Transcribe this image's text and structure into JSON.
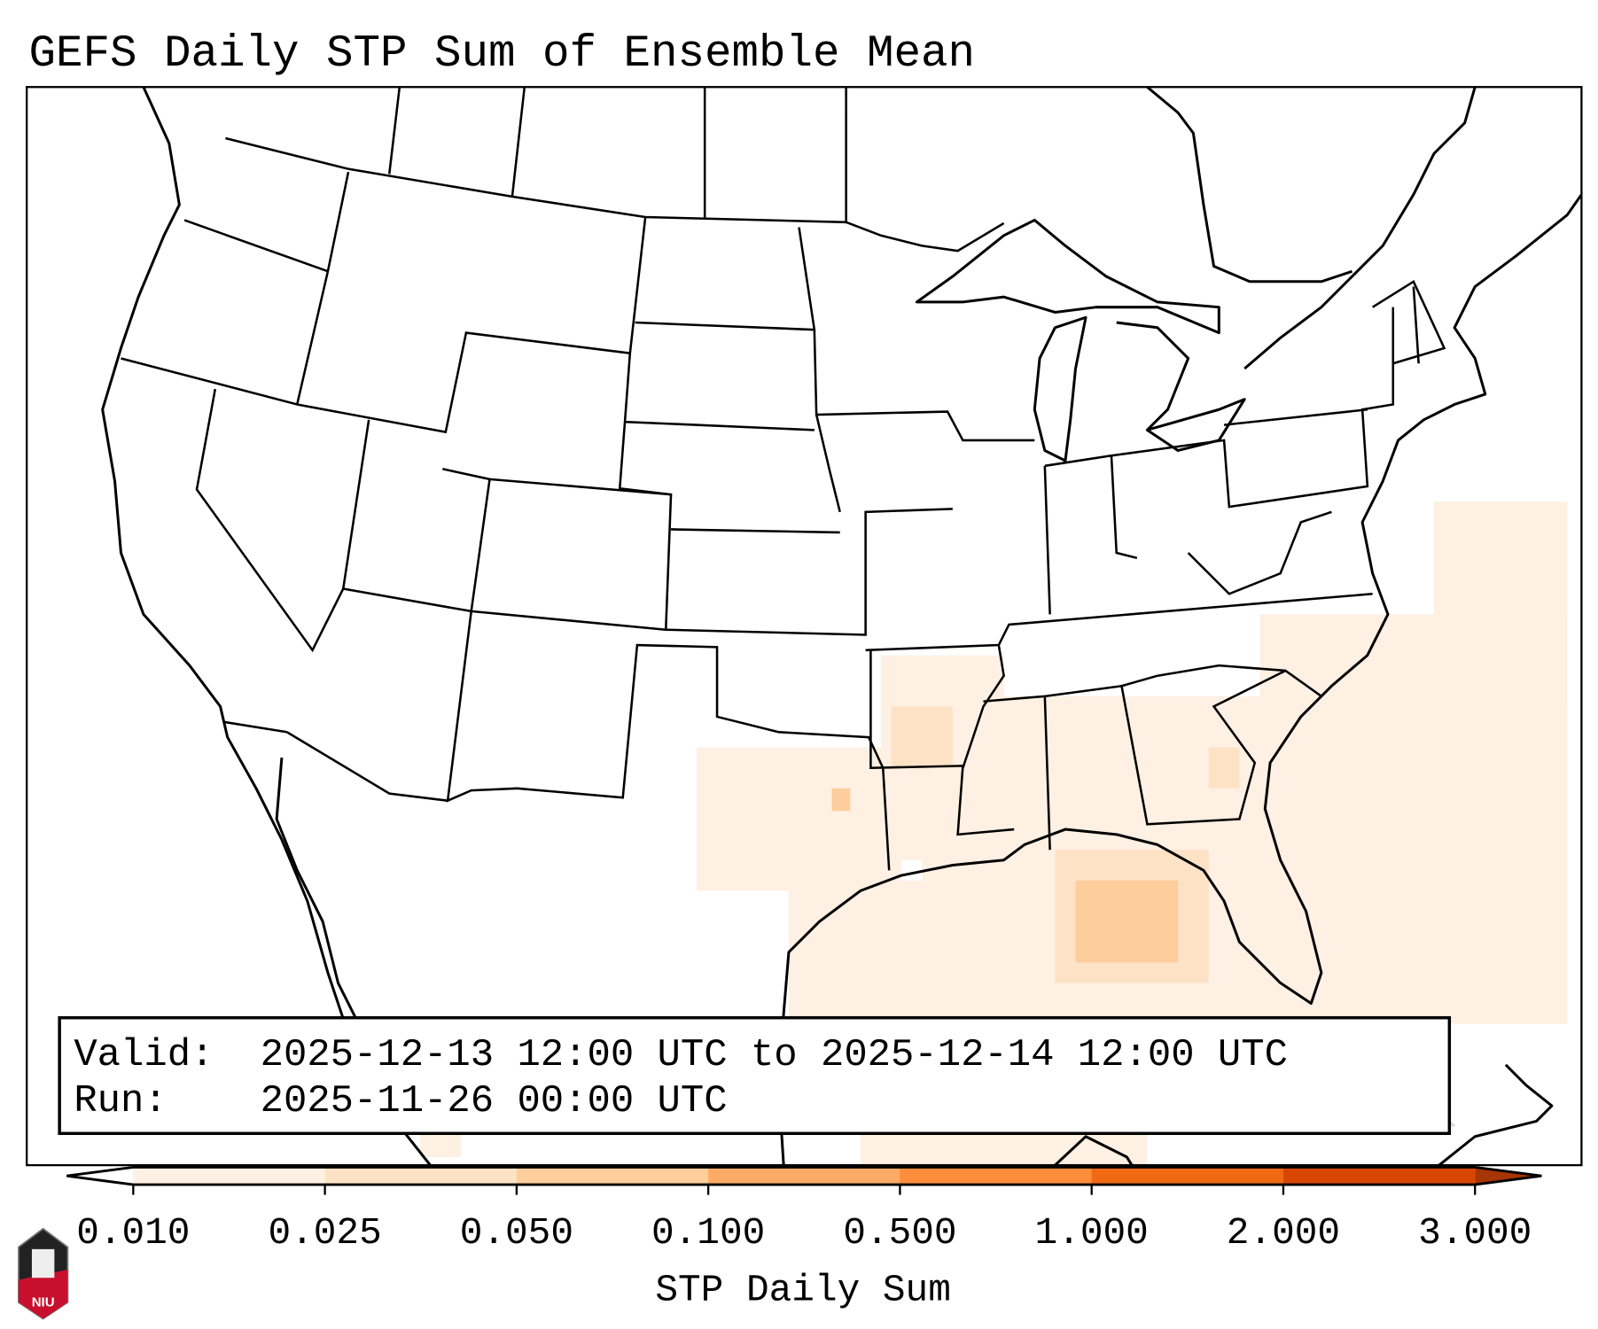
{
  "title": "GEFS Daily STP Sum of Ensemble Mean",
  "info": {
    "valid_label": "Valid:",
    "valid_value": "2025-12-13 12:00 UTC to 2025-12-14 12:00 UTC",
    "run_label": "Run:",
    "run_value": "2025-11-26 00:00 UTC"
  },
  "colorbar": {
    "label": "STP Daily Sum",
    "ticks": [
      "0.010",
      "0.025",
      "0.050",
      "0.100",
      "0.500",
      "1.000",
      "2.000",
      "3.000"
    ],
    "colors": [
      "#fef0e3",
      "#fde2c6",
      "#fdcd9c",
      "#fdab67",
      "#fd8c3b",
      "#f06913",
      "#d84701"
    ],
    "under_color": "#ffffff",
    "over_color": "#a63603"
  },
  "logo": {
    "text": "NIU"
  }
}
